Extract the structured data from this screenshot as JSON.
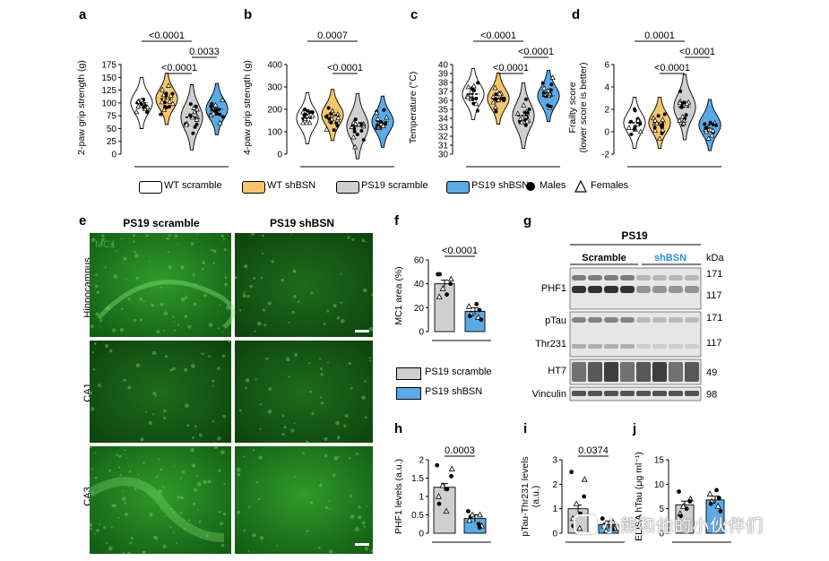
{
  "colors": {
    "wt_scramble": "#ffffff",
    "wt_shbsn": "#f5c66b",
    "ps19_scramble": "#cfcfcf",
    "ps19_shbsn": "#5aaae6",
    "shbsn_text": "#2a8fd6",
    "mic_green": "#3fa83a"
  },
  "legend": {
    "items": [
      "WT scramble",
      "WT shBSN",
      "PS19 scramble",
      "PS19 shBSN"
    ],
    "males": "Males",
    "females": "Females"
  },
  "chart_data": [
    {
      "id": "a",
      "type": "violin",
      "ylabel": "2-paw grip strength (g)",
      "ylim": [
        0,
        175
      ],
      "yticks": [
        0,
        25,
        50,
        75,
        100,
        125,
        150,
        175
      ],
      "groups": [
        "WT scramble",
        "WT shBSN",
        "PS19 scramble",
        "PS19 shBSN"
      ],
      "medians": [
        100,
        108,
        72,
        88
      ],
      "pvalues": [
        {
          "label": "<0.0001",
          "g1": 0,
          "g2": 2
        },
        {
          "label": "<0.0001",
          "g1": 1,
          "g2": 2
        },
        {
          "label": "0.0033",
          "g1": 2,
          "g2": 3
        }
      ]
    },
    {
      "id": "b",
      "type": "violin",
      "ylabel": "4-paw grip strength (g)",
      "ylim": [
        0,
        400
      ],
      "yticks": [
        0,
        100,
        200,
        300,
        400
      ],
      "groups": [
        "WT scramble",
        "WT shBSN",
        "PS19 scramble",
        "PS19 shBSN"
      ],
      "medians": [
        160,
        175,
        125,
        145
      ],
      "pvalues": [
        {
          "label": "0.0007",
          "g1": 0,
          "g2": 2
        },
        {
          "label": "<0.0001",
          "g1": 1,
          "g2": 2
        }
      ]
    },
    {
      "id": "c",
      "type": "violin",
      "ylabel": "Temperature (°C)",
      "ylim": [
        30,
        40
      ],
      "yticks": [
        30,
        31,
        32,
        33,
        34,
        35,
        36,
        37,
        38,
        39,
        40
      ],
      "groups": [
        "WT scramble",
        "WT shBSN",
        "PS19 scramble",
        "PS19 shBSN"
      ],
      "medians": [
        36.7,
        36.2,
        34.3,
        36.5
      ],
      "pvalues": [
        {
          "label": "<0.0001",
          "g1": 0,
          "g2": 2
        },
        {
          "label": "<0.0001",
          "g1": 1,
          "g2": 2
        },
        {
          "label": "<0.0001",
          "g1": 2,
          "g2": 3
        }
      ]
    },
    {
      "id": "d",
      "type": "violin",
      "ylabel": "Frailty score",
      "ylabel2": "(lower score is better)",
      "ylim": [
        -2,
        6
      ],
      "yticks": [
        -2,
        0,
        2,
        4,
        6
      ],
      "groups": [
        "WT scramble",
        "WT shBSN",
        "PS19 scramble",
        "PS19 shBSN"
      ],
      "medians": [
        0.8,
        0.8,
        2.2,
        0.6
      ],
      "pvalues": [
        {
          "label": "0.0001",
          "g1": 0,
          "g2": 2
        },
        {
          "label": "<0.0001",
          "g1": 1,
          "g2": 2
        },
        {
          "label": "<0.0001",
          "g1": 2,
          "g2": 3
        }
      ]
    },
    {
      "id": "f",
      "type": "bar",
      "ylabel": "MC1 area (%)",
      "ylim": [
        0,
        60
      ],
      "yticks": [
        0,
        20,
        40,
        60
      ],
      "categories": [
        "PS19 scramble",
        "PS19 shBSN"
      ],
      "values": [
        40,
        17
      ],
      "points": [
        [
          48,
          44,
          40,
          36,
          31,
          29,
          48
        ],
        [
          23,
          21,
          18,
          15,
          13,
          12,
          10
        ]
      ],
      "pvalue": "<0.0001"
    },
    {
      "id": "h",
      "type": "bar",
      "ylabel": "PHF1 levels (a.u.)",
      "ylim": [
        0,
        2.0
      ],
      "yticks": [
        0,
        0.5,
        1.0,
        1.5,
        2.0
      ],
      "categories": [
        "PS19 scramble",
        "PS19 shBSN"
      ],
      "values": [
        1.25,
        0.4
      ],
      "points": [
        [
          1.85,
          1.75,
          1.55,
          1.3,
          1.2,
          1.0,
          0.8,
          0.6
        ],
        [
          0.6,
          0.5,
          0.45,
          0.35,
          0.25,
          0.2,
          0.15,
          0.5
        ]
      ],
      "pvalue": "0.0003"
    },
    {
      "id": "i",
      "type": "bar",
      "ylabel": "pTau-Thr231 levels",
      "ylabel2": "(a.u.)",
      "ylim": [
        0,
        3
      ],
      "yticks": [
        0,
        1,
        2,
        3
      ],
      "categories": [
        "PS19 scramble",
        "PS19 shBSN"
      ],
      "values": [
        1.0,
        0.35
      ],
      "points": [
        [
          2.5,
          2.2,
          1.5,
          1.2,
          0.8,
          0.6,
          0.3,
          0.2
        ],
        [
          0.6,
          0.45,
          0.35,
          0.3,
          0.25,
          0.2,
          0.15,
          0.1
        ]
      ],
      "pvalue": "0.0374"
    },
    {
      "id": "j",
      "type": "bar",
      "ylabel": "ELISA hTau (μg ml⁻¹)",
      "ylim": [
        0,
        15
      ],
      "yticks": [
        0,
        5,
        10,
        15
      ],
      "categories": [
        "PS19 scramble",
        "PS19 shBSN"
      ],
      "values": [
        5.8,
        6.8
      ],
      "points": [
        [
          8.5,
          7,
          6.5,
          5.5,
          5,
          4,
          3.5
        ],
        [
          8.8,
          8,
          7.2,
          6.5,
          6,
          5.5,
          4.5
        ]
      ],
      "pvalue": ""
    }
  ],
  "panel_e": {
    "cols": [
      "PS19 scramble",
      "PS19 shBSN"
    ],
    "rows": [
      "Hippocampus",
      "CA1",
      "CA3"
    ],
    "stain": "MC1"
  },
  "panel_f_legend": [
    "PS19 scramble",
    "PS19 shBSN"
  ],
  "panel_g": {
    "title": "PS19",
    "group1": "Scramble",
    "group2": "shBSN",
    "kda": "kDa",
    "rows": [
      {
        "label": "PHF1",
        "markers": [
          "171",
          "117"
        ]
      },
      {
        "label": "pTau",
        "label2": "Thr231",
        "markers": [
          "171",
          "117"
        ]
      },
      {
        "label": "HT7",
        "markers": [
          "49"
        ]
      },
      {
        "label": "Vinculin",
        "markers": [
          "98"
        ]
      }
    ]
  },
  "watermark": "小熊和他的小伙伴们"
}
